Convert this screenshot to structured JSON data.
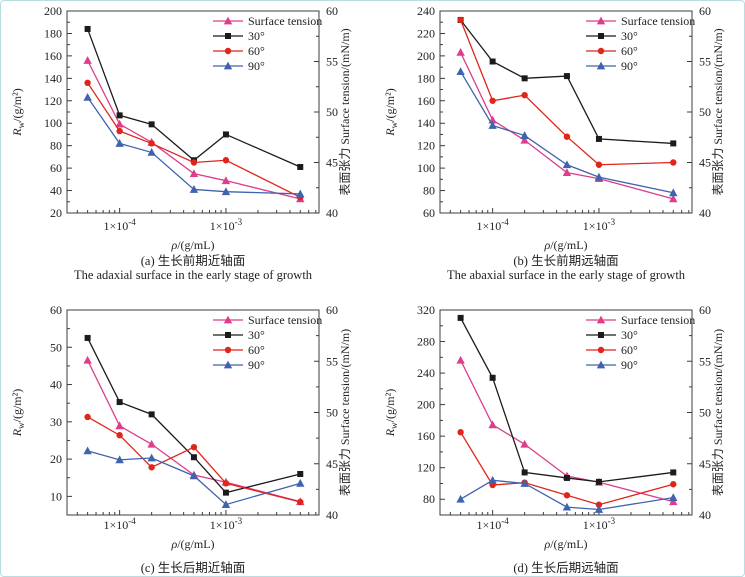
{
  "figure": {
    "border_color": "#b9dcdf",
    "background": "#ffffff",
    "frame_color": "#3c3c3c",
    "text_color": "#1f1f1f"
  },
  "chart_data": [
    {
      "id": "a",
      "type": "line",
      "caption_zh": "(a) 生长前期近轴面",
      "caption_en": "The adaxial surface in the early stage of growth",
      "left_axis": {
        "label_main": "R",
        "label_sub": "w",
        "label_rest": "/(g/m²)",
        "min": 20,
        "max": 200,
        "ticks": [
          20,
          40,
          60,
          80,
          100,
          120,
          140,
          160,
          180,
          200
        ]
      },
      "right_axis": {
        "label": "表面张力 Surface tension/(mN/m)",
        "min": 40,
        "max": 60,
        "ticks": [
          40,
          45,
          50,
          55,
          60
        ]
      },
      "x_axis": {
        "symbol": "ρ",
        "unit": "/(g/mL)",
        "min": 3.2e-05,
        "max": 0.0075,
        "log": true,
        "major_ticks": [
          {
            "base": "1×10",
            "exp": "-4",
            "value": 0.0001
          },
          {
            "base": "1×10",
            "exp": "-3",
            "value": 0.001
          }
        ]
      },
      "x_values": [
        5e-05,
        0.0001,
        0.0002,
        0.0005,
        0.001,
        0.005
      ],
      "series": [
        {
          "name": "Surface tension",
          "axis": "right",
          "marker": "triangle",
          "color": "#dd3d8b",
          "values": [
            55.1,
            48.8,
            47.0,
            43.9,
            43.2,
            41.4
          ]
        },
        {
          "name": "30°",
          "axis": "left",
          "marker": "square",
          "color": "#1b1b1b",
          "values": [
            184,
            107,
            99,
            67,
            90,
            61
          ]
        },
        {
          "name": "60°",
          "axis": "left",
          "marker": "circle",
          "color": "#e0251b",
          "values": [
            136,
            93,
            82,
            65,
            67,
            34
          ]
        },
        {
          "name": "90°",
          "axis": "left",
          "marker": "triangle",
          "color": "#3f63ae",
          "values": [
            123,
            82,
            74,
            41,
            39,
            37
          ]
        }
      ]
    },
    {
      "id": "b",
      "type": "line",
      "caption_zh": "(b) 生长前期远轴面",
      "caption_en": "The abaxial surface in the early stage of growth",
      "left_axis": {
        "label_main": "R",
        "label_sub": "w",
        "label_rest": "/(g/m²)",
        "min": 60,
        "max": 240,
        "ticks": [
          60,
          80,
          100,
          120,
          140,
          160,
          180,
          200,
          220,
          240
        ]
      },
      "right_axis": {
        "label": "表面张力 Surface tension/(mN/m)",
        "min": 40,
        "max": 60,
        "ticks": [
          40,
          45,
          50,
          55,
          60
        ]
      },
      "x_axis": {
        "symbol": "ρ",
        "unit": "/(g/mL)",
        "min": 3.2e-05,
        "max": 0.0075,
        "log": true,
        "major_ticks": [
          {
            "base": "1×10",
            "exp": "-4",
            "value": 0.0001
          },
          {
            "base": "1×10",
            "exp": "-3",
            "value": 0.001
          }
        ]
      },
      "x_values": [
        5e-05,
        0.0001,
        0.0002,
        0.0005,
        0.001,
        0.005
      ],
      "series": [
        {
          "name": "Surface tension",
          "axis": "right",
          "marker": "triangle",
          "color": "#dd3d8b",
          "values": [
            55.9,
            49.2,
            47.2,
            44.0,
            43.4,
            41.4
          ]
        },
        {
          "name": "30°",
          "axis": "left",
          "marker": "square",
          "color": "#1b1b1b",
          "values": [
            232,
            195,
            180,
            182,
            126,
            122
          ]
        },
        {
          "name": "60°",
          "axis": "left",
          "marker": "circle",
          "color": "#e0251b",
          "values": [
            232,
            160,
            165,
            128,
            103,
            105
          ]
        },
        {
          "name": "90°",
          "axis": "left",
          "marker": "triangle",
          "color": "#3f63ae",
          "values": [
            186,
            138,
            129,
            103,
            92,
            78
          ]
        }
      ]
    },
    {
      "id": "c",
      "type": "line",
      "caption_zh": "(c) 生长后期近轴面",
      "caption_en": null,
      "left_axis": {
        "label_main": "R",
        "label_sub": "w",
        "label_rest": "/(g/m²)",
        "min": 5,
        "max": 60,
        "ticks": [
          10,
          20,
          30,
          40,
          50,
          60
        ]
      },
      "right_axis": {
        "label": "表面张力 Surface tension/(mN/m)",
        "min": 40,
        "max": 60,
        "ticks": [
          40,
          45,
          50,
          55,
          60
        ]
      },
      "x_axis": {
        "symbol": "ρ",
        "unit": "/(g/mL)",
        "min": 3.2e-05,
        "max": 0.0075,
        "log": true,
        "major_ticks": [
          {
            "base": "1×10",
            "exp": "-4",
            "value": 0.0001
          },
          {
            "base": "1×10",
            "exp": "-3",
            "value": 0.001
          }
        ]
      },
      "x_values": [
        5e-05,
        0.0001,
        0.0002,
        0.0005,
        0.001,
        0.005
      ],
      "series": [
        {
          "name": "Surface tension",
          "axis": "right",
          "marker": "triangle",
          "color": "#dd3d8b",
          "values": [
            55.1,
            48.7,
            46.9,
            43.9,
            43.2,
            41.3
          ]
        },
        {
          "name": "30°",
          "axis": "left",
          "marker": "square",
          "color": "#1b1b1b",
          "values": [
            52.5,
            35.3,
            32,
            20.5,
            11,
            16
          ]
        },
        {
          "name": "60°",
          "axis": "left",
          "marker": "circle",
          "color": "#e0251b",
          "values": [
            31.3,
            26.4,
            17.8,
            23.2,
            13.5,
            8.5
          ]
        },
        {
          "name": "90°",
          "axis": "left",
          "marker": "triangle",
          "color": "#3f63ae",
          "values": [
            22.2,
            19.8,
            20.3,
            15.5,
            7.8,
            13.5
          ]
        }
      ]
    },
    {
      "id": "d",
      "type": "line",
      "caption_zh": "(d) 生长后期远轴面",
      "caption_en": null,
      "left_axis": {
        "label_main": "R",
        "label_sub": "w",
        "label_rest": "/(g/m²)",
        "min": 60,
        "max": 320,
        "ticks": [
          80,
          120,
          160,
          200,
          240,
          280,
          320
        ]
      },
      "right_axis": {
        "label": "表面张力 Surface tension/(mN/m)",
        "min": 40,
        "max": 60,
        "ticks": [
          40,
          45,
          50,
          55,
          60
        ]
      },
      "x_axis": {
        "symbol": "ρ",
        "unit": "/(g/mL)",
        "min": 3.2e-05,
        "max": 0.0075,
        "log": true,
        "major_ticks": [
          {
            "base": "1×10",
            "exp": "-4",
            "value": 0.0001
          },
          {
            "base": "1×10",
            "exp": "-3",
            "value": 0.001
          }
        ]
      },
      "x_values": [
        5e-05,
        0.0001,
        0.0002,
        0.0005,
        0.001,
        0.005
      ],
      "series": [
        {
          "name": "Surface tension",
          "axis": "right",
          "marker": "triangle",
          "color": "#dd3d8b",
          "values": [
            55.1,
            48.8,
            46.9,
            43.8,
            43.2,
            41.3
          ]
        },
        {
          "name": "30°",
          "axis": "left",
          "marker": "square",
          "color": "#1b1b1b",
          "values": [
            310,
            234,
            114,
            107,
            102,
            114
          ]
        },
        {
          "name": "60°",
          "axis": "left",
          "marker": "circle",
          "color": "#e0251b",
          "values": [
            165,
            98,
            101,
            85,
            73,
            99
          ]
        },
        {
          "name": "90°",
          "axis": "left",
          "marker": "triangle",
          "color": "#3f63ae",
          "values": [
            80,
            104,
            100,
            70,
            67,
            82
          ]
        }
      ]
    }
  ]
}
